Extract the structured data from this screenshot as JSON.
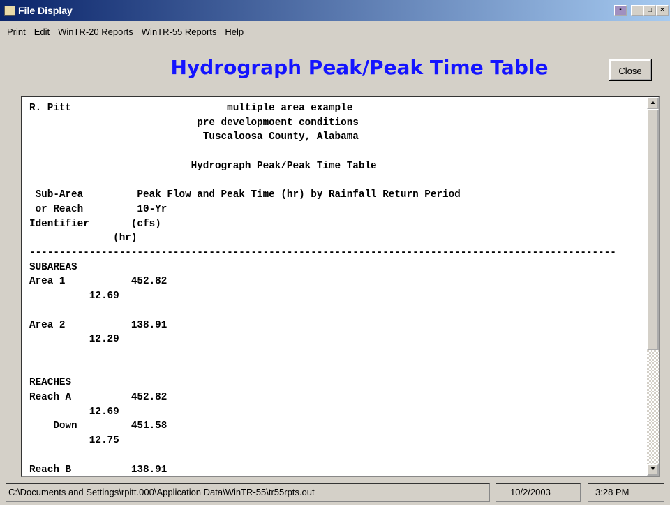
{
  "window": {
    "title": "File Display"
  },
  "menu": [
    "Print",
    "Edit",
    "WinTR-20 Reports",
    "WinTR-55 Reports",
    "Help"
  ],
  "heading": "Hydrograph Peak/Peak Time Table",
  "close_button": "Close",
  "report_lines": [
    "R. Pitt                          multiple area example",
    "                            pre developmoent conditions",
    "                             Tuscaloosa County, Alabama",
    "                           Hydrograph Peak/Peak Time Table",
    " Sub-Area         Peak Flow and Peak Time (hr) by Rainfall Return Period",
    " or Reach         10-Yr",
    "Identifier       (cfs)",
    "              (hr)",
    "--------------------------------------------------------------------------------------------------",
    "SUBAREAS",
    "Area 1           452.82",
    "          12.69",
    "Area 2           138.91",
    "          12.29",
    "REACHES",
    "Reach A          452.82",
    "          12.69",
    "    Down         451.58",
    "          12.75",
    "Reach B          138.91"
  ],
  "status": {
    "path": "C:\\Documents and Settings\\rpitt.000\\Application Data\\WinTR-55\\tr55rpts.out",
    "date": "10/2/2003",
    "time": "3:28 PM"
  }
}
